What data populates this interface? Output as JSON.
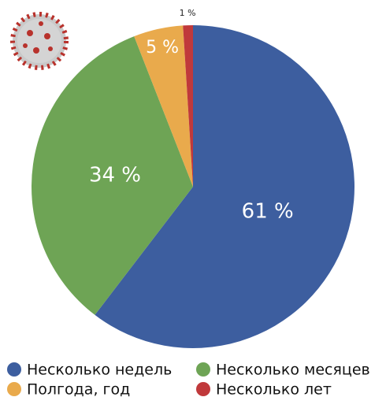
{
  "chart_data": {
    "type": "pie",
    "categories": [
      "Несколько недель",
      "Несколько месяцев",
      "Полгода, год",
      "Несколько лет"
    ],
    "values": [
      61,
      34,
      5,
      1
    ],
    "value_labels": [
      "61 %",
      "34 %",
      "5 %",
      "1 %"
    ],
    "colors": [
      "#3d5e9f",
      "#6ea455",
      "#e9aa4c",
      "#c0393b"
    ]
  }
}
